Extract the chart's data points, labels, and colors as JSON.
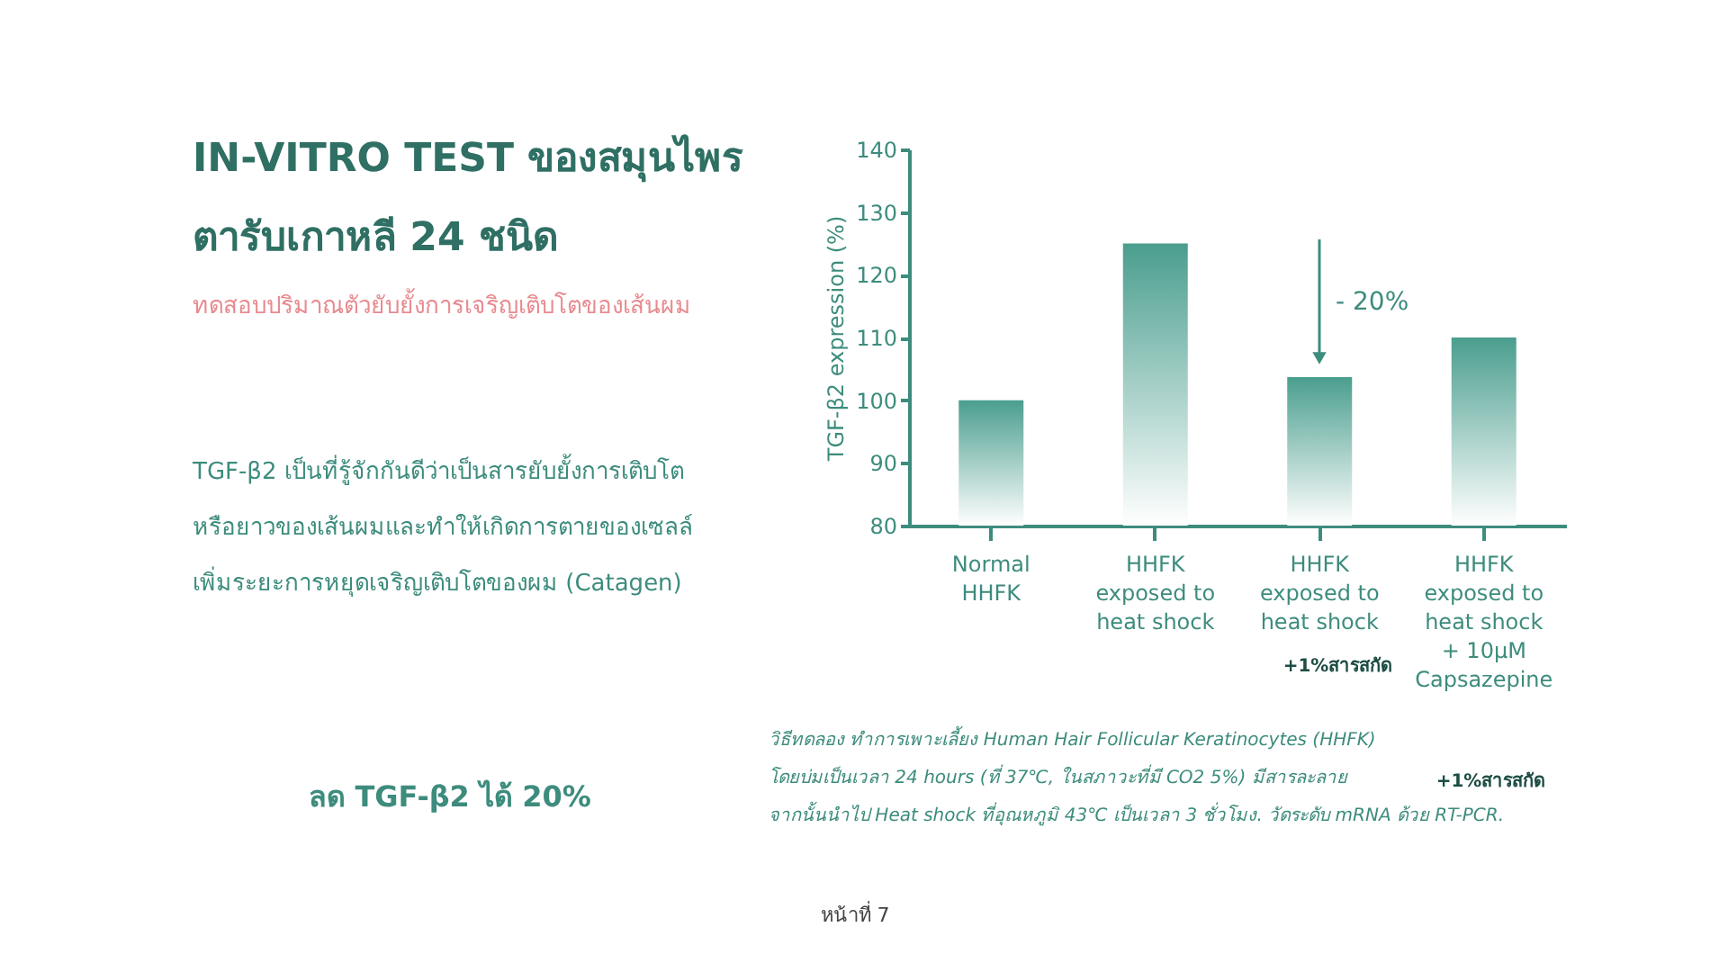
{
  "chart_data": {
    "type": "bar",
    "title": "IN-VITRO TEST ของสมุนไพร\nตารับเกาหลี 24 ชนิด",
    "subtitle": "ทดสอบปริมาณตัวยับยั้งการเจริญเติบโตของเส้นผม",
    "ylabel": "TGF-β2 expression (%)",
    "categories": [
      "Normal\nHHFK",
      "HHFK\nexposed to\nheat shock",
      "HHFK\nexposed to\nheat shock",
      "HHFK\nexposed to\nheat shock\n+ 10μM\nCapsazepine"
    ],
    "values": [
      100,
      125,
      103.7,
      110
    ],
    "color": "#4a9e8e",
    "ylim": [
      80,
      140
    ],
    "yticks": [
      80,
      90,
      100,
      110,
      120,
      130,
      140
    ],
    "grid": false,
    "annotations": [
      "- 20%",
      "TGF-β2   เป็นที่รู้จักกันดีว่าเป็นสารยับยั้งการเติบโต\nหรือยาวของเส้นผมและทำให้เกิดการตายของเซลล์\nเพิ่มระยะการหยุดเจริญเติบโตของผม (Catagen)",
      "ลด TGF-β2 ได้ 20%",
      "+1%สารสกัด",
      "วิธีทดลอง ทำการเพาะเลี้ยง Human Hair Follicular Keratinocytes (HHFK)\nโดยบ่มเป็นเวลา 24 hours (ที่ 37℃, ในสภาวะที่มี CO2 5%) มีสารละลาย\nจากนั้นนำไป Heat shock ที่อุณหภูมิ 43℃ เป็นเวลา 3 ชั่วโมง. วัดระดับ mRNA ด้วย RT-PCR.",
      "+1%สารสกัด",
      "หน้าที่ 7"
    ]
  }
}
